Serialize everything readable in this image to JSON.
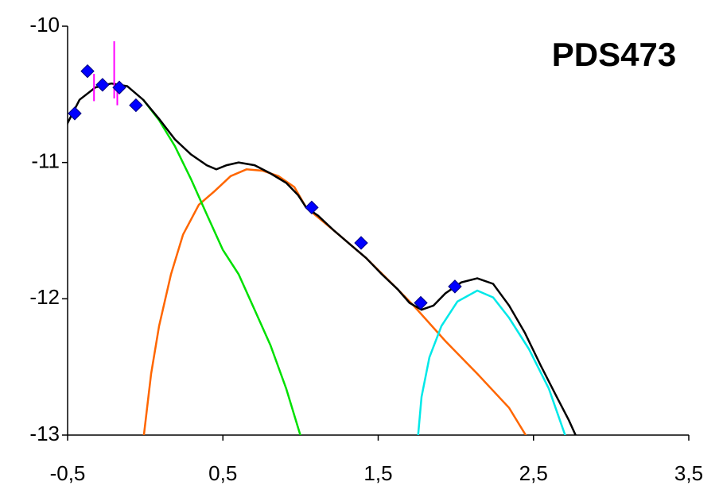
{
  "chart_data": {
    "type": "line",
    "title": "PDS473",
    "xlim": [
      -0.5,
      3.5
    ],
    "xticks": [
      {
        "value": -0.5,
        "label": "-0,5"
      },
      {
        "value": 0.5,
        "label": "0,5"
      },
      {
        "value": 1.5,
        "label": "1,5"
      },
      {
        "value": 2.5,
        "label": "2,5"
      },
      {
        "value": 3.5,
        "label": "3,5"
      }
    ],
    "ylim": [
      -13,
      -10
    ],
    "yticks": [
      -13,
      -12,
      -11,
      -10
    ],
    "grid": false,
    "series": [
      {
        "type": "line",
        "color": "#ff6600",
        "x": [
          -0.013,
          0.038,
          0.089,
          0.166,
          0.243,
          0.345,
          0.447,
          0.55,
          0.652,
          0.755,
          0.857,
          0.96,
          1.036,
          1.216,
          1.421,
          1.625,
          1.728,
          1.933,
          2.138,
          2.343,
          2.455
        ],
        "values": [
          -13.04,
          -12.55,
          -12.2,
          -11.82,
          -11.53,
          -11.31,
          -11.21,
          -11.1,
          -11.05,
          -11.06,
          -11.1,
          -11.18,
          -11.33,
          -11.5,
          -11.7,
          -11.93,
          -12.05,
          -12.31,
          -12.55,
          -12.8,
          -13.01
        ]
      },
      {
        "type": "line",
        "color": "#00e000",
        "x": [
          -0.013,
          0.089,
          0.191,
          0.294,
          0.396,
          0.499,
          0.601,
          0.704,
          0.806,
          0.908,
          1.001
        ],
        "values": [
          -10.54,
          -10.69,
          -10.88,
          -11.12,
          -11.38,
          -11.64,
          -11.82,
          -12.08,
          -12.34,
          -12.66,
          -13.01
        ]
      },
      {
        "type": "line",
        "color": "#00e8e8",
        "x": [
          1.754,
          1.779,
          1.83,
          1.907,
          2.01,
          2.138,
          2.24,
          2.343,
          2.471,
          2.599,
          2.716
        ],
        "values": [
          -13.04,
          -12.72,
          -12.43,
          -12.2,
          -12.02,
          -11.94,
          -11.99,
          -12.14,
          -12.37,
          -12.66,
          -13.04
        ]
      },
      {
        "type": "line",
        "color": "#000000",
        "x": [
          -0.546,
          -0.5,
          -0.423,
          -0.321,
          -0.218,
          -0.116,
          -0.013,
          0.089,
          0.191,
          0.294,
          0.396,
          0.458,
          0.524,
          0.601,
          0.704,
          0.806,
          0.908,
          0.985,
          1.036,
          1.113,
          1.216,
          1.318,
          1.421,
          1.523,
          1.625,
          1.702,
          1.779,
          1.856,
          1.933,
          2.035,
          2.138,
          2.24,
          2.343,
          2.445,
          2.547,
          2.65,
          2.727,
          2.783
        ],
        "values": [
          -10.86,
          -10.71,
          -10.54,
          -10.45,
          -10.42,
          -10.44,
          -10.54,
          -10.68,
          -10.83,
          -10.94,
          -11.02,
          -11.05,
          -11.02,
          -11.0,
          -11.02,
          -11.08,
          -11.15,
          -11.24,
          -11.33,
          -11.39,
          -11.5,
          -11.6,
          -11.7,
          -11.82,
          -11.93,
          -12.03,
          -12.08,
          -12.05,
          -11.96,
          -11.88,
          -11.85,
          -11.89,
          -12.05,
          -12.25,
          -12.49,
          -12.72,
          -12.89,
          -13.03
        ]
      },
      {
        "type": "errorbar",
        "color": "#ff00ff",
        "x": [
          -0.33,
          -0.2,
          -0.18
        ],
        "values": [
          -10.45,
          -10.32,
          -10.5
        ],
        "errors": [
          0.1,
          0.21,
          0.08
        ]
      },
      {
        "type": "scatter",
        "color": "#0000ff",
        "x": [
          -0.454,
          -0.372,
          -0.275,
          -0.167,
          -0.06,
          1.072,
          1.39,
          1.774,
          1.994
        ],
        "values": [
          -10.64,
          -10.33,
          -10.43,
          -10.45,
          -10.58,
          -11.33,
          -11.59,
          -12.03,
          -11.91
        ]
      }
    ]
  }
}
